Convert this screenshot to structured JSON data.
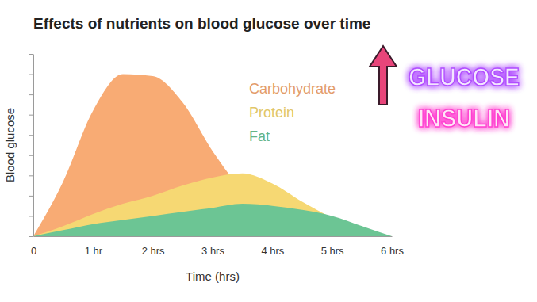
{
  "chart_data": {
    "type": "area",
    "title": "Effects of nutrients on blood glucose over time",
    "x_label": "Time (hrs)",
    "y_label": "Blood glucose",
    "x": [
      0,
      0.5,
      1,
      1.5,
      2,
      2.5,
      3,
      3.5,
      4,
      4.5,
      5,
      5.5,
      6
    ],
    "series": [
      {
        "name": "Carbohydrate",
        "color": "#f8ab74",
        "values": [
          0,
          2.7,
          6.2,
          8.0,
          7.9,
          6.6,
          4.2,
          2.3,
          1.3,
          0.5,
          0.1,
          0,
          0
        ]
      },
      {
        "name": "Protein",
        "color": "#f6d873",
        "values": [
          0,
          0.5,
          1.1,
          1.6,
          2.0,
          2.5,
          2.9,
          3.1,
          2.6,
          1.7,
          0.9,
          0.2,
          0
        ]
      },
      {
        "name": "Fat",
        "color": "#6cc594",
        "values": [
          0,
          0.3,
          0.6,
          0.8,
          1.0,
          1.2,
          1.4,
          1.6,
          1.5,
          1.3,
          1.0,
          0.5,
          0
        ]
      }
    ],
    "xlim": [
      0,
      6
    ],
    "xticks": [
      0,
      {
        "value": 1,
        "label": "1 hr"
      },
      {
        "value": 2,
        "label": "2 hrs"
      },
      {
        "value": 3,
        "label": "3 hrs"
      },
      {
        "value": 4,
        "label": "4 hrs"
      },
      {
        "value": 5,
        "label": "5 hrs"
      },
      {
        "value": 6,
        "label": "6 hrs"
      }
    ],
    "ylim": [
      0,
      9
    ],
    "yticks": [
      0,
      1,
      2,
      3,
      4,
      5,
      6,
      7,
      8,
      9
    ],
    "tick_labels": "x",
    "grid": false,
    "legend": "top-right",
    "annotations": [
      "GLUCOSE",
      "INSULIN"
    ]
  }
}
